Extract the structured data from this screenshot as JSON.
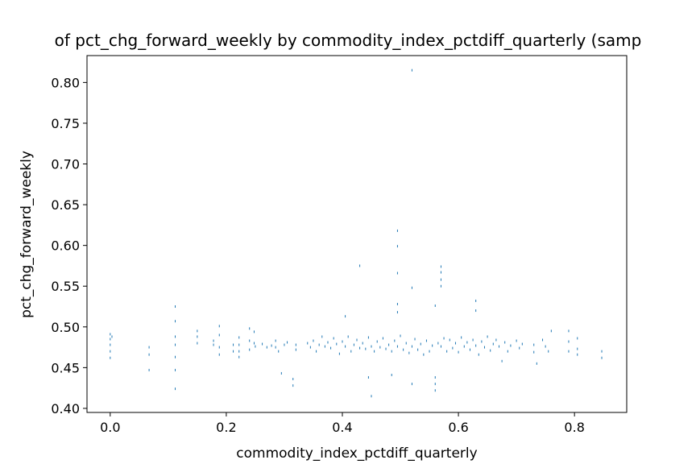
{
  "chart_data": {
    "type": "scatter",
    "title": "of pct_chg_forward_weekly by commodity_index_pctdiff_quarterly (samp",
    "xlabel": "commodity_index_pctdiff_quarterly",
    "ylabel": "pct_chg_forward_weekly",
    "xlim": [
      -0.04,
      0.89
    ],
    "ylim": [
      0.395,
      0.833
    ],
    "xticks": [
      0.0,
      0.2,
      0.4,
      0.6,
      0.8
    ],
    "xtick_labels": [
      "0.0",
      "0.2",
      "0.4",
      "0.6",
      "0.8"
    ],
    "yticks": [
      0.4,
      0.45,
      0.5,
      0.55,
      0.6,
      0.65,
      0.7,
      0.75,
      0.8
    ],
    "ytick_labels": [
      "0.40",
      "0.45",
      "0.50",
      "0.55",
      "0.60",
      "0.65",
      "0.70",
      "0.75",
      "0.80"
    ],
    "grid": false,
    "marker_color": "#1f77b4",
    "series": [
      {
        "points": [
          [
            0.0,
            0.491
          ],
          [
            0.0,
            0.485
          ],
          [
            0.0,
            0.478
          ],
          [
            0.0,
            0.47
          ],
          [
            0.0,
            0.462
          ],
          [
            0.003,
            0.488
          ],
          [
            0.067,
            0.475
          ],
          [
            0.067,
            0.466
          ],
          [
            0.067,
            0.447
          ],
          [
            0.112,
            0.525
          ],
          [
            0.112,
            0.507
          ],
          [
            0.112,
            0.488
          ],
          [
            0.112,
            0.478
          ],
          [
            0.112,
            0.463
          ],
          [
            0.112,
            0.447
          ],
          [
            0.112,
            0.424
          ],
          [
            0.15,
            0.495
          ],
          [
            0.15,
            0.488
          ],
          [
            0.15,
            0.48
          ],
          [
            0.178,
            0.483
          ],
          [
            0.178,
            0.478
          ],
          [
            0.188,
            0.501
          ],
          [
            0.188,
            0.49
          ],
          [
            0.188,
            0.475
          ],
          [
            0.188,
            0.466
          ],
          [
            0.212,
            0.47
          ],
          [
            0.212,
            0.478
          ],
          [
            0.222,
            0.487
          ],
          [
            0.222,
            0.478
          ],
          [
            0.222,
            0.47
          ],
          [
            0.222,
            0.463
          ],
          [
            0.24,
            0.498
          ],
          [
            0.24,
            0.483
          ],
          [
            0.24,
            0.472
          ],
          [
            0.248,
            0.494
          ],
          [
            0.248,
            0.48
          ],
          [
            0.25,
            0.476
          ],
          [
            0.262,
            0.479
          ],
          [
            0.27,
            0.475
          ],
          [
            0.278,
            0.477
          ],
          [
            0.285,
            0.483
          ],
          [
            0.285,
            0.475
          ],
          [
            0.29,
            0.47
          ],
          [
            0.295,
            0.443
          ],
          [
            0.3,
            0.478
          ],
          [
            0.305,
            0.481
          ],
          [
            0.315,
            0.436
          ],
          [
            0.315,
            0.428
          ],
          [
            0.32,
            0.478
          ],
          [
            0.32,
            0.472
          ],
          [
            0.34,
            0.48
          ],
          [
            0.345,
            0.475
          ],
          [
            0.35,
            0.483
          ],
          [
            0.355,
            0.47
          ],
          [
            0.36,
            0.478
          ],
          [
            0.365,
            0.488
          ],
          [
            0.37,
            0.476
          ],
          [
            0.375,
            0.481
          ],
          [
            0.38,
            0.474
          ],
          [
            0.385,
            0.486
          ],
          [
            0.39,
            0.479
          ],
          [
            0.395,
            0.467
          ],
          [
            0.4,
            0.482
          ],
          [
            0.405,
            0.476
          ],
          [
            0.405,
            0.513
          ],
          [
            0.41,
            0.488
          ],
          [
            0.415,
            0.47
          ],
          [
            0.42,
            0.478
          ],
          [
            0.425,
            0.484
          ],
          [
            0.43,
            0.575
          ],
          [
            0.43,
            0.474
          ],
          [
            0.435,
            0.48
          ],
          [
            0.44,
            0.473
          ],
          [
            0.445,
            0.487
          ],
          [
            0.445,
            0.438
          ],
          [
            0.45,
            0.415
          ],
          [
            0.45,
            0.476
          ],
          [
            0.455,
            0.47
          ],
          [
            0.46,
            0.482
          ],
          [
            0.465,
            0.475
          ],
          [
            0.47,
            0.486
          ],
          [
            0.475,
            0.473
          ],
          [
            0.48,
            0.478
          ],
          [
            0.485,
            0.441
          ],
          [
            0.485,
            0.47
          ],
          [
            0.49,
            0.483
          ],
          [
            0.495,
            0.618
          ],
          [
            0.495,
            0.599
          ],
          [
            0.495,
            0.566
          ],
          [
            0.495,
            0.528
          ],
          [
            0.495,
            0.518
          ],
          [
            0.495,
            0.476
          ],
          [
            0.5,
            0.489
          ],
          [
            0.505,
            0.472
          ],
          [
            0.51,
            0.48
          ],
          [
            0.515,
            0.468
          ],
          [
            0.52,
            0.815
          ],
          [
            0.52,
            0.548
          ],
          [
            0.52,
            0.476
          ],
          [
            0.52,
            0.43
          ],
          [
            0.525,
            0.485
          ],
          [
            0.53,
            0.472
          ],
          [
            0.535,
            0.479
          ],
          [
            0.54,
            0.466
          ],
          [
            0.545,
            0.483
          ],
          [
            0.55,
            0.47
          ],
          [
            0.555,
            0.477
          ],
          [
            0.56,
            0.526
          ],
          [
            0.56,
            0.438
          ],
          [
            0.56,
            0.43
          ],
          [
            0.56,
            0.422
          ],
          [
            0.565,
            0.48
          ],
          [
            0.57,
            0.574
          ],
          [
            0.57,
            0.567
          ],
          [
            0.57,
            0.558
          ],
          [
            0.57,
            0.55
          ],
          [
            0.57,
            0.476
          ],
          [
            0.575,
            0.486
          ],
          [
            0.58,
            0.47
          ],
          [
            0.585,
            0.484
          ],
          [
            0.59,
            0.474
          ],
          [
            0.595,
            0.48
          ],
          [
            0.6,
            0.469
          ],
          [
            0.605,
            0.487
          ],
          [
            0.61,
            0.476
          ],
          [
            0.615,
            0.481
          ],
          [
            0.62,
            0.472
          ],
          [
            0.625,
            0.484
          ],
          [
            0.63,
            0.532
          ],
          [
            0.63,
            0.52
          ],
          [
            0.63,
            0.477
          ],
          [
            0.635,
            0.466
          ],
          [
            0.64,
            0.482
          ],
          [
            0.645,
            0.475
          ],
          [
            0.65,
            0.488
          ],
          [
            0.655,
            0.471
          ],
          [
            0.66,
            0.479
          ],
          [
            0.665,
            0.484
          ],
          [
            0.67,
            0.476
          ],
          [
            0.675,
            0.458
          ],
          [
            0.68,
            0.481
          ],
          [
            0.685,
            0.47
          ],
          [
            0.69,
            0.477
          ],
          [
            0.7,
            0.483
          ],
          [
            0.705,
            0.474
          ],
          [
            0.71,
            0.479
          ],
          [
            0.73,
            0.478
          ],
          [
            0.73,
            0.469
          ],
          [
            0.735,
            0.455
          ],
          [
            0.745,
            0.484
          ],
          [
            0.75,
            0.476
          ],
          [
            0.755,
            0.47
          ],
          [
            0.76,
            0.495
          ],
          [
            0.79,
            0.495
          ],
          [
            0.79,
            0.482
          ],
          [
            0.79,
            0.47
          ],
          [
            0.805,
            0.486
          ],
          [
            0.805,
            0.473
          ],
          [
            0.805,
            0.466
          ],
          [
            0.847,
            0.47
          ],
          [
            0.847,
            0.462
          ]
        ]
      }
    ]
  }
}
